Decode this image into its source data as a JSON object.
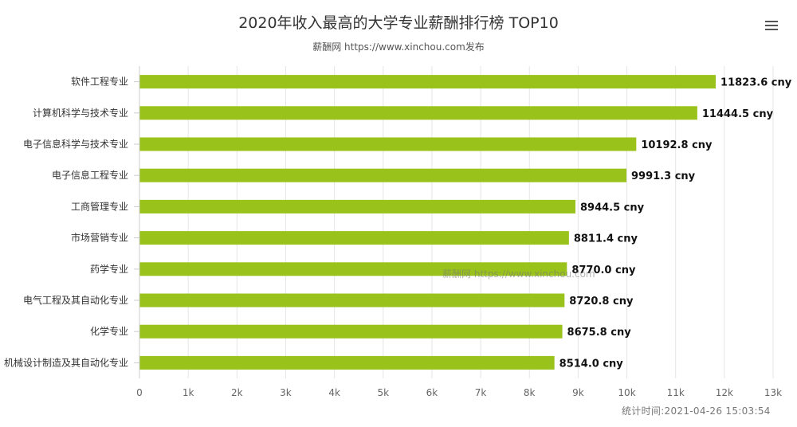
{
  "header": {
    "title": "2020年收入最高的大学专业薪酬排行榜 TOP10",
    "subtitle": "薪酬网 https://www.xinchou.com发布"
  },
  "icons": {
    "menu": "hamburger-menu-icon"
  },
  "watermark": "薪酬网 https://www.xinchou.com",
  "timestamp": "统计时间:2021-04-26 15:03:54",
  "chart_data": {
    "type": "bar",
    "orientation": "horizontal",
    "title": "2020年收入最高的大学专业薪酬排行榜 TOP10",
    "subtitle": "薪酬网 https://www.xinchou.com发布",
    "xlabel": "",
    "ylabel": "",
    "categories": [
      "软件工程专业",
      "计算机科学与技术专业",
      "电子信息科学与技术专业",
      "电子信息工程专业",
      "工商管理专业",
      "市场营销专业",
      "药学专业",
      "电气工程及其自动化专业",
      "化学专业",
      "机械设计制造及其自动化专业"
    ],
    "values": [
      11823.6,
      11444.5,
      10192.8,
      9991.3,
      8944.5,
      8811.4,
      8770.0,
      8720.8,
      8675.8,
      8514.0
    ],
    "data_labels": [
      "11823.6 cny",
      "11444.5 cny",
      "10192.8 cny",
      "9991.3 cny",
      "8944.5 cny",
      "8811.4 cny",
      "8770.0 cny",
      "8720.8 cny",
      "8675.8 cny",
      "8514.0 cny"
    ],
    "xlim": [
      0,
      13000
    ],
    "tick_values": [
      0,
      1000,
      2000,
      3000,
      4000,
      5000,
      6000,
      7000,
      8000,
      9000,
      10000,
      11000,
      12000,
      13000
    ],
    "tick_labels": [
      "0",
      "1k",
      "2k",
      "3k",
      "4k",
      "5k",
      "6k",
      "7k",
      "8k",
      "9k",
      "10k",
      "11k",
      "12k",
      "13k"
    ],
    "grid": true,
    "legend": "none",
    "colors": {
      "bar": "#99c21a",
      "grid": "#e6e6e6",
      "text": "#333333",
      "label": "#111111"
    }
  }
}
